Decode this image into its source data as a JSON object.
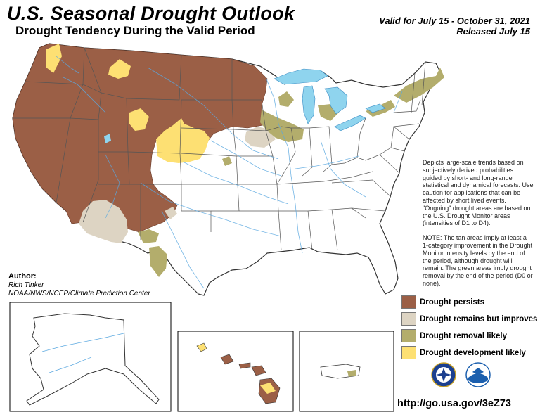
{
  "header": {
    "title": "U.S. Seasonal Drought Outlook",
    "subtitle": "Drought Tendency During the Valid Period",
    "valid_line": "Valid for July 15 - October 31, 2021",
    "released_line": "Released July 15"
  },
  "description": {
    "paragraph1": "Depicts large-scale trends based on subjectively derived probabilities guided by short- and long-range statistical and dynamical forecasts. Use caution for applications that can be affected by short lived events. \"Ongoing\" drought areas are based on the U.S. Drought Monitor areas (intensities of D1 to D4).",
    "paragraph2": "NOTE: The tan areas imply at least a 1-category improvement in the Drought Monitor intensity levels by the end of the period, although drought will remain. The green areas imply drought removal by the end of the period (D0 or none)."
  },
  "author": {
    "label": "Author:",
    "name": "Rich Tinker",
    "org": "NOAA/NWS/NCEP/Climate Prediction Center"
  },
  "legend": [
    {
      "label": "Drought persists",
      "color": "#9b5f46"
    },
    {
      "label": "Drought remains but improves",
      "color": "#ddd4c3"
    },
    {
      "label": "Drought removal likely",
      "color": "#b3ad6c"
    },
    {
      "label": "Drought development likely",
      "color": "#fde073"
    }
  ],
  "colors": {
    "water": "#8fd4ee",
    "river": "#5aa8e0",
    "border": "#555555"
  },
  "icons": [
    "noaa-nws-logo-icon",
    "noaa-logo-icon"
  ],
  "footer": {
    "url": "http://go.usa.gov/3eZ73"
  }
}
